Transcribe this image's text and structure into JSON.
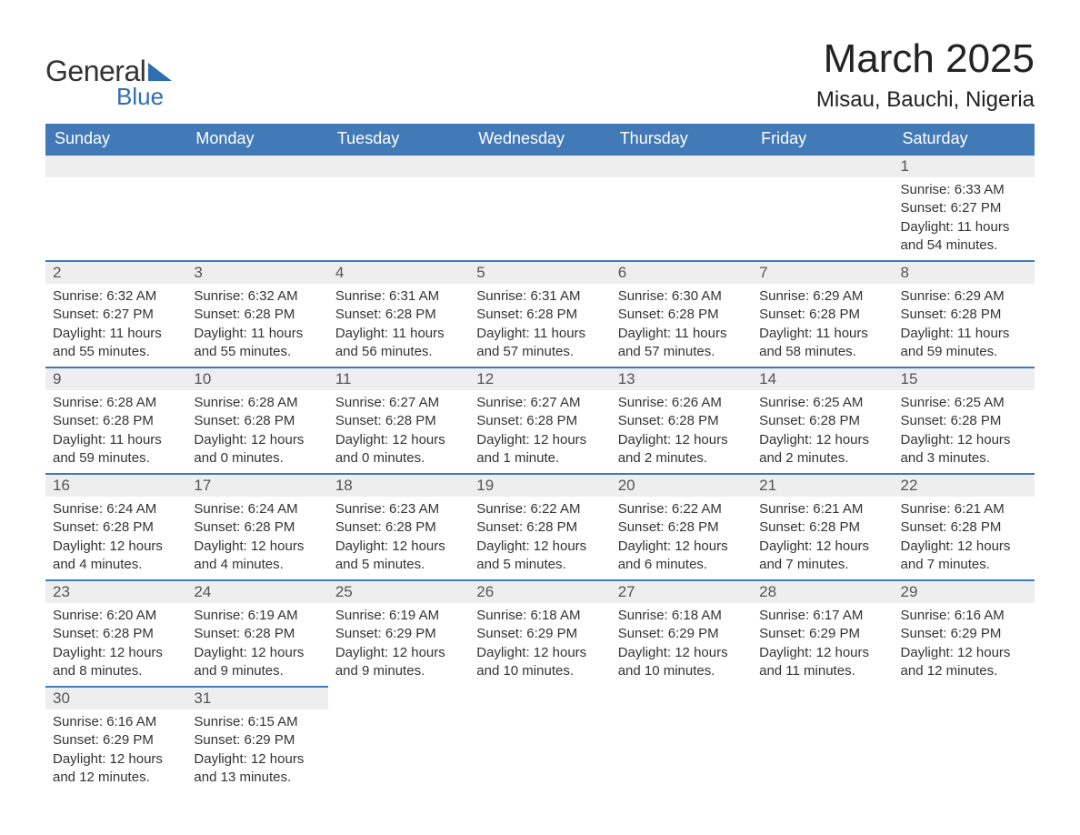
{
  "logo": {
    "text1": "General",
    "text2": "Blue",
    "brand_color": "#2f6eb0"
  },
  "title": "March 2025",
  "location": "Misau, Bauchi, Nigeria",
  "colors": {
    "header_bg": "#4279b7",
    "header_fg": "#ffffff",
    "daynum_bg": "#eeeeee",
    "row_border": "#4279b7",
    "text": "#333333"
  },
  "day_headers": [
    "Sunday",
    "Monday",
    "Tuesday",
    "Wednesday",
    "Thursday",
    "Friday",
    "Saturday"
  ],
  "weeks": [
    [
      {
        "n": "",
        "empty": true
      },
      {
        "n": "",
        "empty": true
      },
      {
        "n": "",
        "empty": true
      },
      {
        "n": "",
        "empty": true
      },
      {
        "n": "",
        "empty": true
      },
      {
        "n": "",
        "empty": true
      },
      {
        "n": "1",
        "sunrise": "6:33 AM",
        "sunset": "6:27 PM",
        "daylight": "11 hours and 54 minutes."
      }
    ],
    [
      {
        "n": "2",
        "sunrise": "6:32 AM",
        "sunset": "6:27 PM",
        "daylight": "11 hours and 55 minutes."
      },
      {
        "n": "3",
        "sunrise": "6:32 AM",
        "sunset": "6:28 PM",
        "daylight": "11 hours and 55 minutes."
      },
      {
        "n": "4",
        "sunrise": "6:31 AM",
        "sunset": "6:28 PM",
        "daylight": "11 hours and 56 minutes."
      },
      {
        "n": "5",
        "sunrise": "6:31 AM",
        "sunset": "6:28 PM",
        "daylight": "11 hours and 57 minutes."
      },
      {
        "n": "6",
        "sunrise": "6:30 AM",
        "sunset": "6:28 PM",
        "daylight": "11 hours and 57 minutes."
      },
      {
        "n": "7",
        "sunrise": "6:29 AM",
        "sunset": "6:28 PM",
        "daylight": "11 hours and 58 minutes."
      },
      {
        "n": "8",
        "sunrise": "6:29 AM",
        "sunset": "6:28 PM",
        "daylight": "11 hours and 59 minutes."
      }
    ],
    [
      {
        "n": "9",
        "sunrise": "6:28 AM",
        "sunset": "6:28 PM",
        "daylight": "11 hours and 59 minutes."
      },
      {
        "n": "10",
        "sunrise": "6:28 AM",
        "sunset": "6:28 PM",
        "daylight": "12 hours and 0 minutes."
      },
      {
        "n": "11",
        "sunrise": "6:27 AM",
        "sunset": "6:28 PM",
        "daylight": "12 hours and 0 minutes."
      },
      {
        "n": "12",
        "sunrise": "6:27 AM",
        "sunset": "6:28 PM",
        "daylight": "12 hours and 1 minute."
      },
      {
        "n": "13",
        "sunrise": "6:26 AM",
        "sunset": "6:28 PM",
        "daylight": "12 hours and 2 minutes."
      },
      {
        "n": "14",
        "sunrise": "6:25 AM",
        "sunset": "6:28 PM",
        "daylight": "12 hours and 2 minutes."
      },
      {
        "n": "15",
        "sunrise": "6:25 AM",
        "sunset": "6:28 PM",
        "daylight": "12 hours and 3 minutes."
      }
    ],
    [
      {
        "n": "16",
        "sunrise": "6:24 AM",
        "sunset": "6:28 PM",
        "daylight": "12 hours and 4 minutes."
      },
      {
        "n": "17",
        "sunrise": "6:24 AM",
        "sunset": "6:28 PM",
        "daylight": "12 hours and 4 minutes."
      },
      {
        "n": "18",
        "sunrise": "6:23 AM",
        "sunset": "6:28 PM",
        "daylight": "12 hours and 5 minutes."
      },
      {
        "n": "19",
        "sunrise": "6:22 AM",
        "sunset": "6:28 PM",
        "daylight": "12 hours and 5 minutes."
      },
      {
        "n": "20",
        "sunrise": "6:22 AM",
        "sunset": "6:28 PM",
        "daylight": "12 hours and 6 minutes."
      },
      {
        "n": "21",
        "sunrise": "6:21 AM",
        "sunset": "6:28 PM",
        "daylight": "12 hours and 7 minutes."
      },
      {
        "n": "22",
        "sunrise": "6:21 AM",
        "sunset": "6:28 PM",
        "daylight": "12 hours and 7 minutes."
      }
    ],
    [
      {
        "n": "23",
        "sunrise": "6:20 AM",
        "sunset": "6:28 PM",
        "daylight": "12 hours and 8 minutes."
      },
      {
        "n": "24",
        "sunrise": "6:19 AM",
        "sunset": "6:28 PM",
        "daylight": "12 hours and 9 minutes."
      },
      {
        "n": "25",
        "sunrise": "6:19 AM",
        "sunset": "6:29 PM",
        "daylight": "12 hours and 9 minutes."
      },
      {
        "n": "26",
        "sunrise": "6:18 AM",
        "sunset": "6:29 PM",
        "daylight": "12 hours and 10 minutes."
      },
      {
        "n": "27",
        "sunrise": "6:18 AM",
        "sunset": "6:29 PM",
        "daylight": "12 hours and 10 minutes."
      },
      {
        "n": "28",
        "sunrise": "6:17 AM",
        "sunset": "6:29 PM",
        "daylight": "12 hours and 11 minutes."
      },
      {
        "n": "29",
        "sunrise": "6:16 AM",
        "sunset": "6:29 PM",
        "daylight": "12 hours and 12 minutes."
      }
    ],
    [
      {
        "n": "30",
        "sunrise": "6:16 AM",
        "sunset": "6:29 PM",
        "daylight": "12 hours and 12 minutes."
      },
      {
        "n": "31",
        "sunrise": "6:15 AM",
        "sunset": "6:29 PM",
        "daylight": "12 hours and 13 minutes."
      },
      {
        "n": "",
        "empty": true
      },
      {
        "n": "",
        "empty": true
      },
      {
        "n": "",
        "empty": true
      },
      {
        "n": "",
        "empty": true
      },
      {
        "n": "",
        "empty": true
      }
    ]
  ],
  "labels": {
    "sunrise": "Sunrise: ",
    "sunset": "Sunset: ",
    "daylight": "Daylight: "
  }
}
